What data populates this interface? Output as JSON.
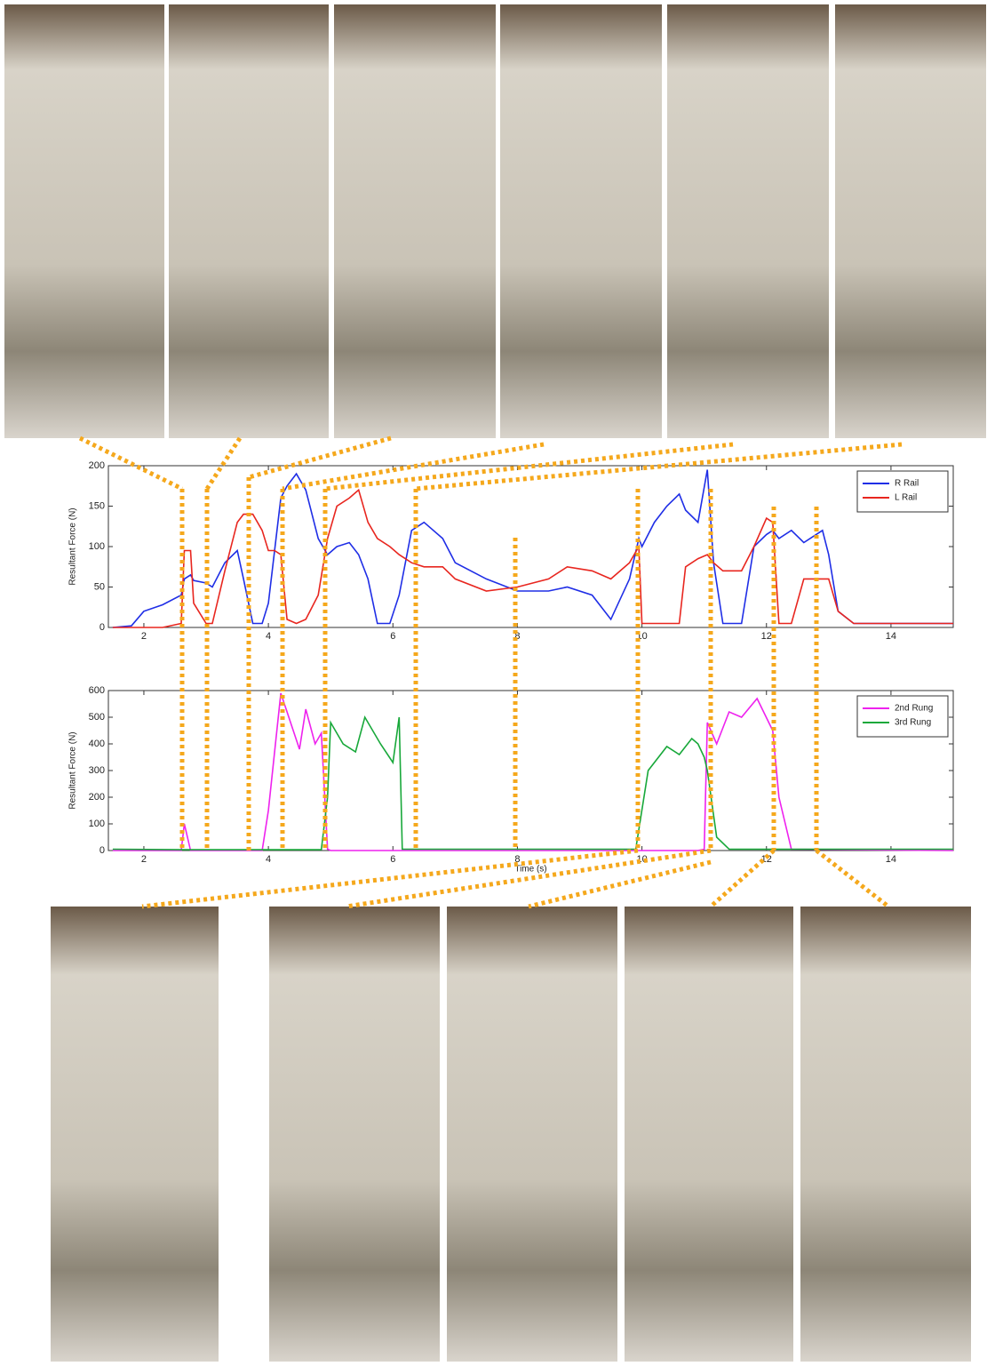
{
  "chart_data": [
    {
      "type": "line",
      "y_label": "Resultant Force (N)",
      "legend": "upper right",
      "xlim": [
        1.43,
        15
      ],
      "xticks": [
        2,
        4,
        6,
        8,
        10,
        12,
        14
      ],
      "ylim": [
        0,
        200
      ],
      "yticks": [
        0,
        50,
        100,
        150,
        200
      ],
      "x": [
        1.5,
        1.8,
        2.0,
        2.3,
        2.6,
        2.65,
        2.75,
        2.8,
        3.0,
        3.1,
        3.3,
        3.5,
        3.6,
        3.75,
        3.9,
        4.0,
        4.1,
        4.2,
        4.3,
        4.45,
        4.6,
        4.8,
        4.95,
        5.1,
        5.3,
        5.45,
        5.6,
        5.75,
        5.95,
        6.1,
        6.3,
        6.5,
        6.8,
        7.0,
        7.5,
        8.0,
        8.5,
        8.8,
        9.2,
        9.5,
        9.8,
        9.95,
        10.0,
        10.2,
        10.4,
        10.6,
        10.7,
        10.9,
        11.05,
        11.15,
        11.3,
        11.6,
        11.8,
        12.0,
        12.1,
        12.2,
        12.4,
        12.6,
        12.9,
        13.0,
        13.15,
        13.4,
        15
      ],
      "series": [
        {
          "name": "R Rail",
          "color": "#1f2ee6",
          "values": [
            0,
            2,
            20,
            28,
            40,
            60,
            65,
            58,
            55,
            50,
            80,
            95,
            60,
            5,
            5,
            30,
            95,
            160,
            175,
            190,
            170,
            110,
            90,
            100,
            105,
            90,
            60,
            5,
            5,
            40,
            120,
            130,
            110,
            80,
            60,
            45,
            45,
            50,
            40,
            10,
            60,
            110,
            100,
            130,
            150,
            165,
            145,
            130,
            195,
            80,
            5,
            5,
            100,
            115,
            120,
            110,
            120,
            105,
            120,
            90,
            20,
            5,
            5
          ]
        },
        {
          "name": "L Rail",
          "color": "#e8261f",
          "values": [
            0,
            0,
            0,
            0,
            5,
            95,
            95,
            30,
            5,
            5,
            70,
            130,
            140,
            140,
            120,
            95,
            95,
            90,
            10,
            5,
            10,
            40,
            110,
            150,
            160,
            170,
            130,
            110,
            100,
            90,
            80,
            75,
            75,
            60,
            45,
            50,
            60,
            75,
            70,
            60,
            80,
            100,
            5,
            5,
            5,
            5,
            75,
            85,
            90,
            80,
            70,
            70,
            100,
            135,
            130,
            5,
            5,
            60,
            60,
            60,
            20,
            5,
            5
          ]
        }
      ]
    },
    {
      "type": "line",
      "y_label": "Resultant Force (N)",
      "x_label": "Time (s)",
      "legend": "upper right",
      "xlim": [
        1.43,
        15
      ],
      "xticks": [
        2,
        4,
        6,
        8,
        10,
        12,
        14
      ],
      "ylim": [
        0,
        600
      ],
      "yticks": [
        0,
        100,
        200,
        300,
        400,
        500,
        600
      ],
      "x": [
        1.5,
        2.6,
        2.65,
        2.75,
        3.9,
        4.0,
        4.2,
        4.4,
        4.5,
        4.6,
        4.75,
        4.85,
        4.95,
        5.0,
        5.2,
        5.4,
        5.55,
        5.8,
        6.0,
        6.1,
        6.15,
        9.9,
        10.1,
        10.4,
        10.6,
        10.8,
        10.9,
        11.0,
        11.05,
        11.2,
        11.4,
        11.6,
        11.85,
        12.1,
        12.2,
        12.4,
        15
      ],
      "series": [
        {
          "name": "2nd Rung",
          "color": "#ee22ee",
          "values": [
            0,
            0,
            100,
            0,
            0,
            150,
            590,
            450,
            380,
            530,
            400,
            440,
            5,
            0,
            0,
            0,
            0,
            0,
            0,
            0,
            0,
            0,
            0,
            0,
            0,
            0,
            0,
            5,
            480,
            400,
            520,
            500,
            570,
            450,
            200,
            5,
            0
          ]
        },
        {
          "name": "3rd Rung",
          "color": "#18a83a",
          "values": [
            5,
            3,
            3,
            3,
            3,
            3,
            3,
            3,
            3,
            3,
            3,
            3,
            200,
            480,
            400,
            370,
            500,
            400,
            330,
            500,
            5,
            5,
            300,
            390,
            360,
            420,
            400,
            350,
            300,
            50,
            5,
            5,
            5,
            5,
            5,
            5,
            5
          ]
        }
      ]
    }
  ]
}
